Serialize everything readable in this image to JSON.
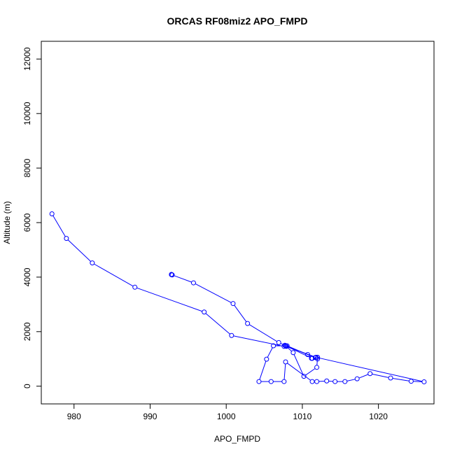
{
  "chart_data": {
    "type": "line",
    "title": "ORCAS RF08miz2 APO_FMPD",
    "xlabel": "APO_FMPD",
    "ylabel": "Altitude (m)",
    "xlim": [
      975.7,
      1027.3
    ],
    "ylim": [
      -650,
      12650
    ],
    "x_ticks": [
      980,
      990,
      1000,
      1010,
      1020
    ],
    "x_tick_labels": [
      "980",
      "990",
      "1000",
      "1010",
      "1020"
    ],
    "y_ticks": [
      0,
      2000,
      4000,
      6000,
      8000,
      10000,
      12000
    ],
    "y_tick_labels": [
      "0",
      "2000",
      "4000",
      "6000",
      "8000",
      "10000",
      "12000"
    ],
    "grid": false,
    "legend": "none",
    "series_color": "#0000ff",
    "series": [
      {
        "x": [
          992.8,
          992.8,
          992.9,
          995.7,
          1000.9,
          1002.8,
          1006.9,
          1007.7,
          1011.7,
          1012.0,
          1011.2,
          1010.7,
          1008.0,
          1007.9,
          1011.8,
          1026.0,
          1024.3,
          1021.6,
          1018.9,
          1017.2,
          1015.6,
          1014.3,
          1013.2,
          1011.9,
          1011.3,
          1007.8,
          1007.6,
          1005.9,
          1004.3,
          1005.3,
          1006.2,
          1007.8,
          1008.8,
          1010.2,
          1011.9,
          1012.0,
          1011.3,
          1007.8,
          1007.6,
          1000.7,
          997.1,
          988.0,
          982.4,
          979.0,
          977.1
        ],
        "y": [
          4100,
          4090,
          4080,
          3790,
          3030,
          2300,
          1600,
          1500,
          1050,
          1000,
          1020,
          1160,
          1480,
          1460,
          1060,
          160,
          180,
          300,
          460,
          270,
          170,
          170,
          190,
          170,
          170,
          890,
          170,
          170,
          170,
          990,
          1480,
          1480,
          1230,
          360,
          690,
          1060,
          1020,
          1480,
          1460,
          1860,
          2720,
          3630,
          4520,
          5420,
          6320
        ]
      }
    ]
  }
}
